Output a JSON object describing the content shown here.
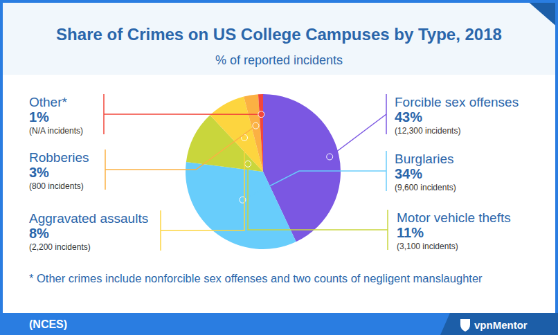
{
  "chart_data": {
    "type": "pie",
    "title": "Share of Crimes on US College Campuses by Type, 2018",
    "subtitle": "% of reported incidents",
    "categories": [
      "Forcible sex offenses",
      "Burglaries",
      "Motor vehicle thefts",
      "Aggravated assaults",
      "Robberies",
      "Other*"
    ],
    "values": [
      43,
      34,
      11,
      8,
      3,
      1
    ],
    "value_labels": [
      "43%",
      "34%",
      "11%",
      "8%",
      "3%",
      "1%"
    ],
    "incident_labels": [
      "(12,300 incidents)",
      "(9,600 incidents)",
      "(3,100 incidents)",
      "(2,200 incidents)",
      "(800 incidents)",
      "(N/A incidents)"
    ],
    "colors": [
      "#7b57e2",
      "#68cdfb",
      "#c9d63c",
      "#fdd53f",
      "#fbb143",
      "#f2473b"
    ],
    "data_labels": true,
    "footnote": "* Other crimes include nonforcible sex offenses and two counts of negligent manslaughter",
    "source": "(NCES)",
    "brand": "vpnMentor"
  }
}
